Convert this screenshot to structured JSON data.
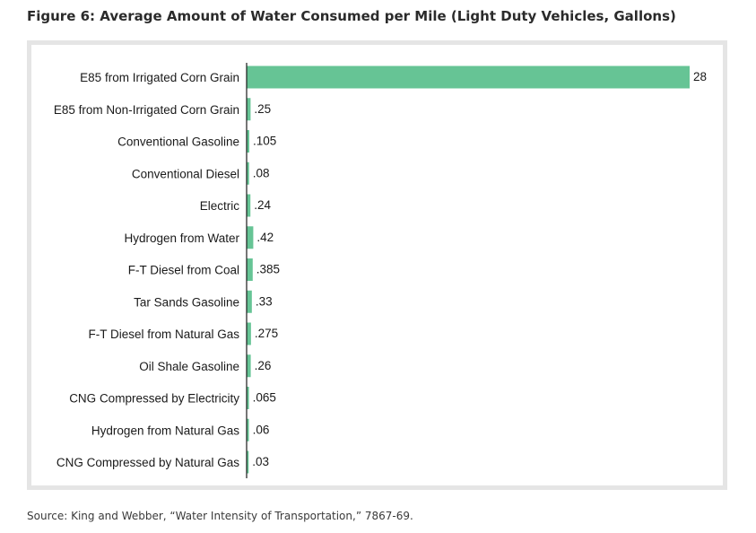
{
  "figure": {
    "title": "Figure 6: Average Amount of Water Consumed per Mile (Light Duty Vehicles, Gallons)",
    "source": "Source: King and Webber, “Water Intensity of Transportation,” 7867-69."
  },
  "colors": {
    "bar": "#66c495",
    "axis": "#1a1a1a",
    "frame": "#e5e5e5"
  },
  "chart_data": {
    "type": "bar",
    "orientation": "horizontal",
    "title": "Figure 6: Average Amount of Water Consumed per Mile (Light Duty Vehicles, Gallons)",
    "xlabel": "",
    "ylabel": "",
    "xlim": [
      0,
      28
    ],
    "grid": false,
    "legend": "none",
    "categories": [
      "E85 from Irrigated Corn Grain",
      "E85 from Non-Irrigated Corn Grain",
      "Conventional Gasoline",
      "Conventional Diesel",
      "Electric",
      "Hydrogen from Water",
      "F-T Diesel from Coal",
      "Tar Sands Gasoline",
      "F-T Diesel from Natural Gas",
      "Oil Shale Gasoline",
      "CNG Compressed by Electricity",
      "Hydrogen from Natural Gas",
      "CNG Compressed by Natural Gas"
    ],
    "values": [
      28,
      0.25,
      0.105,
      0.08,
      0.24,
      0.42,
      0.385,
      0.33,
      0.275,
      0.26,
      0.065,
      0.06,
      0.03
    ],
    "value_labels": [
      "28",
      ".25",
      ".105",
      ".08",
      ".24",
      ".42",
      ".385",
      ".33",
      ".275",
      ".26",
      ".065",
      ".06",
      ".03"
    ]
  }
}
